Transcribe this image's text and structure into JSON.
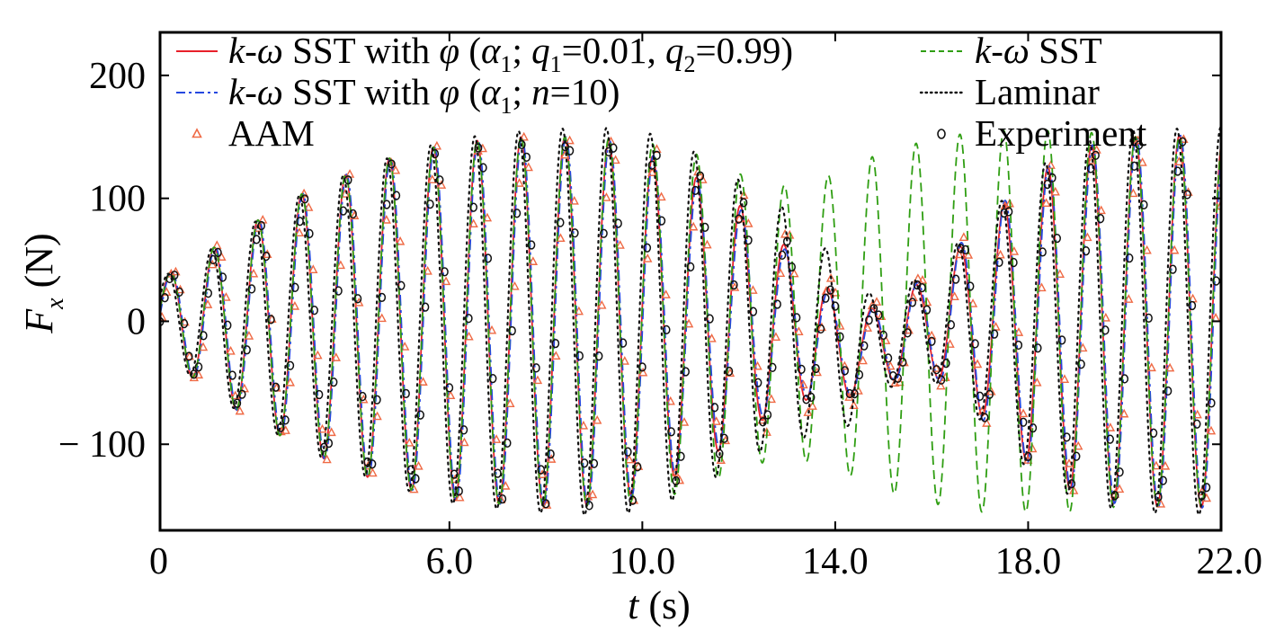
{
  "chart_data": {
    "type": "line",
    "title": "",
    "xlabel": {
      "var": "t",
      "unit": "(s)"
    },
    "ylabel": {
      "var": "F",
      "sub": "x",
      "unit": "(N)"
    },
    "xlim": [
      0,
      22.0
    ],
    "ylim": [
      -170,
      235
    ],
    "x_ticks": [
      0,
      6.0,
      10.0,
      14.0,
      18.0,
      22.0
    ],
    "x_tick_labels": [
      "0",
      "6.0",
      "10.0",
      "14.0",
      "18.0",
      "22.0"
    ],
    "y_ticks": [
      200,
      100,
      0,
      -100
    ],
    "y_tick_labels": [
      "200",
      "100",
      "0",
      "− 100"
    ],
    "grid": false,
    "legend_position": "top",
    "series": [
      {
        "name": "k-ω SST with φ (α1; q1=0.01, q2=0.99)",
        "color": "#e8202a",
        "style": "solid",
        "envelope": [
          [
            0,
            30
          ],
          [
            1.5,
            70
          ],
          [
            3,
            105
          ],
          [
            4.5,
            130
          ],
          [
            6,
            145
          ],
          [
            7.5,
            150
          ],
          [
            9,
            150
          ],
          [
            10,
            138
          ],
          [
            11,
            120
          ],
          [
            12,
            95
          ],
          [
            13,
            65
          ],
          [
            14,
            40
          ],
          [
            15,
            30
          ],
          [
            16,
            40
          ],
          [
            17,
            75
          ],
          [
            18,
            115
          ],
          [
            19,
            140
          ],
          [
            20,
            150
          ],
          [
            22,
            152
          ]
        ],
        "offset": [
          [
            0,
            5
          ],
          [
            1.2,
            0
          ],
          [
            5,
            0
          ],
          [
            12.5,
            0
          ],
          [
            13.5,
            -10
          ],
          [
            14.3,
            -25
          ],
          [
            15,
            -20
          ],
          [
            15.6,
            -8
          ],
          [
            16.3,
            0
          ],
          [
            22,
            0
          ]
        ],
        "period": 0.91,
        "phase": 0.05
      },
      {
        "name": "k-ω SST with φ (α1; n=10)",
        "color": "#2548e0",
        "style": "dashdot",
        "envelope": [
          [
            0,
            30
          ],
          [
            1.5,
            70
          ],
          [
            3,
            105
          ],
          [
            4.5,
            130
          ],
          [
            6,
            145
          ],
          [
            7.5,
            150
          ],
          [
            9,
            150
          ],
          [
            10,
            140
          ],
          [
            11,
            118
          ],
          [
            12,
            92
          ],
          [
            13,
            62
          ],
          [
            14,
            38
          ],
          [
            15,
            30
          ],
          [
            16,
            42
          ],
          [
            17,
            78
          ],
          [
            18,
            117
          ],
          [
            19,
            140
          ],
          [
            20,
            150
          ],
          [
            22,
            152
          ]
        ],
        "offset": [
          [
            0,
            5
          ],
          [
            1.2,
            0
          ],
          [
            5,
            0
          ],
          [
            12.5,
            0
          ],
          [
            13.5,
            -10
          ],
          [
            14.3,
            -25
          ],
          [
            15,
            -20
          ],
          [
            15.6,
            -8
          ],
          [
            16.3,
            0
          ],
          [
            22,
            0
          ]
        ],
        "period": 0.91,
        "phase": 0.07
      },
      {
        "name": "AAM",
        "color": "#ef6a45",
        "style": "triangle-markers",
        "envelope": [
          [
            0,
            30
          ],
          [
            1.5,
            70
          ],
          [
            3,
            105
          ],
          [
            4.5,
            130
          ],
          [
            6,
            145
          ],
          [
            7.5,
            150
          ],
          [
            9,
            150
          ],
          [
            10,
            145
          ],
          [
            11,
            130
          ],
          [
            12,
            105
          ],
          [
            13,
            80
          ],
          [
            14,
            50
          ],
          [
            15,
            35
          ],
          [
            16,
            45
          ],
          [
            17,
            80
          ],
          [
            18,
            115
          ],
          [
            19,
            140
          ],
          [
            20,
            148
          ],
          [
            22,
            150
          ]
        ],
        "offset": [
          [
            0,
            5
          ],
          [
            1.2,
            0
          ],
          [
            5,
            0
          ],
          [
            12.5,
            0
          ],
          [
            13.5,
            -10
          ],
          [
            14.3,
            -25
          ],
          [
            15,
            -20
          ],
          [
            15.6,
            -8
          ],
          [
            16.3,
            0
          ],
          [
            22,
            0
          ]
        ],
        "period": 0.91,
        "phase": 0.12
      },
      {
        "name": "k-ω SST",
        "color": "#2f9e12",
        "style": "dashed",
        "envelope": [
          [
            0,
            30
          ],
          [
            1.5,
            70
          ],
          [
            3,
            105
          ],
          [
            4.5,
            130
          ],
          [
            6,
            145
          ],
          [
            7.5,
            150
          ],
          [
            9,
            150
          ],
          [
            10,
            146
          ],
          [
            11,
            138
          ],
          [
            12,
            120
          ],
          [
            13,
            110
          ],
          [
            14,
            120
          ],
          [
            15,
            138
          ],
          [
            16,
            148
          ],
          [
            17,
            155
          ],
          [
            18,
            155
          ],
          [
            19,
            155
          ],
          [
            20,
            150
          ],
          [
            22,
            150
          ]
        ],
        "offset": [
          [
            0,
            5
          ],
          [
            1.2,
            0
          ],
          [
            22,
            0
          ]
        ],
        "period": 0.91,
        "phase": 0.05
      },
      {
        "name": "Laminar",
        "color": "#111111",
        "style": "dotted",
        "envelope": [
          [
            0,
            30
          ],
          [
            1.5,
            70
          ],
          [
            3,
            105
          ],
          [
            4.5,
            130
          ],
          [
            6,
            148
          ],
          [
            7.5,
            155
          ],
          [
            9,
            158
          ],
          [
            10,
            155
          ],
          [
            11,
            140
          ],
          [
            12,
            115
          ],
          [
            13,
            95
          ],
          [
            14,
            70
          ],
          [
            15,
            35
          ],
          [
            16,
            45
          ],
          [
            17,
            80
          ],
          [
            18,
            120
          ],
          [
            19,
            145
          ],
          [
            20,
            155
          ],
          [
            22,
            158
          ]
        ],
        "offset": [
          [
            0,
            5
          ],
          [
            1.2,
            0
          ],
          [
            5,
            0
          ],
          [
            12.5,
            0
          ],
          [
            13.5,
            -10
          ],
          [
            14.3,
            -25
          ],
          [
            15,
            -20
          ],
          [
            15.6,
            -8
          ],
          [
            16.3,
            0
          ],
          [
            22,
            0
          ]
        ],
        "period": 0.91,
        "phase": 0.0
      },
      {
        "name": "Experiment",
        "color": "#111111",
        "style": "circle-markers",
        "envelope": [
          [
            0,
            28
          ],
          [
            1.5,
            65
          ],
          [
            3,
            100
          ],
          [
            4.5,
            125
          ],
          [
            6,
            140
          ],
          [
            7.5,
            148
          ],
          [
            9,
            150
          ],
          [
            10,
            145
          ],
          [
            11,
            125
          ],
          [
            12,
            100
          ],
          [
            13,
            70
          ],
          [
            14,
            40
          ],
          [
            15,
            30
          ],
          [
            16,
            40
          ],
          [
            17,
            75
          ],
          [
            18,
            110
          ],
          [
            19,
            135
          ],
          [
            20,
            145
          ],
          [
            22,
            148
          ]
        ],
        "offset": [
          [
            0,
            5
          ],
          [
            1.2,
            0
          ],
          [
            5,
            0
          ],
          [
            12.5,
            0
          ],
          [
            13.5,
            -10
          ],
          [
            14.3,
            -25
          ],
          [
            15,
            -20
          ],
          [
            15.6,
            -8
          ],
          [
            16.3,
            0
          ],
          [
            22,
            0
          ]
        ],
        "period": 0.91,
        "phase": 0.1
      }
    ],
    "legend": {
      "left": [
        {
          "parts": [
            [
              "i",
              "k"
            ],
            [
              "n",
              "-"
            ],
            [
              "i",
              "ω"
            ],
            [
              "n",
              " SST with "
            ],
            [
              "i",
              "φ"
            ],
            [
              "n",
              " ("
            ],
            [
              "i",
              "α"
            ],
            [
              "s",
              "1"
            ],
            [
              "n",
              "; "
            ],
            [
              "i",
              "q"
            ],
            [
              "s",
              "1"
            ],
            [
              "n",
              "=0.01, "
            ],
            [
              "i",
              "q"
            ],
            [
              "s",
              "2"
            ],
            [
              "n",
              "=0.99)"
            ]
          ]
        },
        {
          "parts": [
            [
              "i",
              "k"
            ],
            [
              "n",
              "-"
            ],
            [
              "i",
              "ω"
            ],
            [
              "n",
              " SST with "
            ],
            [
              "i",
              "φ"
            ],
            [
              "n",
              " ("
            ],
            [
              "i",
              "α"
            ],
            [
              "s",
              "1"
            ],
            [
              "n",
              "; "
            ],
            [
              "i",
              "n"
            ],
            [
              "n",
              "=10)"
            ]
          ]
        },
        {
          "parts": [
            [
              "n",
              "AAM"
            ]
          ]
        }
      ],
      "right": [
        {
          "parts": [
            [
              "i",
              "k"
            ],
            [
              "n",
              "-"
            ],
            [
              "i",
              "ω"
            ],
            [
              "n",
              " SST"
            ]
          ]
        },
        {
          "parts": [
            [
              "n",
              "Laminar"
            ]
          ]
        },
        {
          "parts": [
            [
              "n",
              "Experiment"
            ]
          ]
        }
      ]
    }
  }
}
